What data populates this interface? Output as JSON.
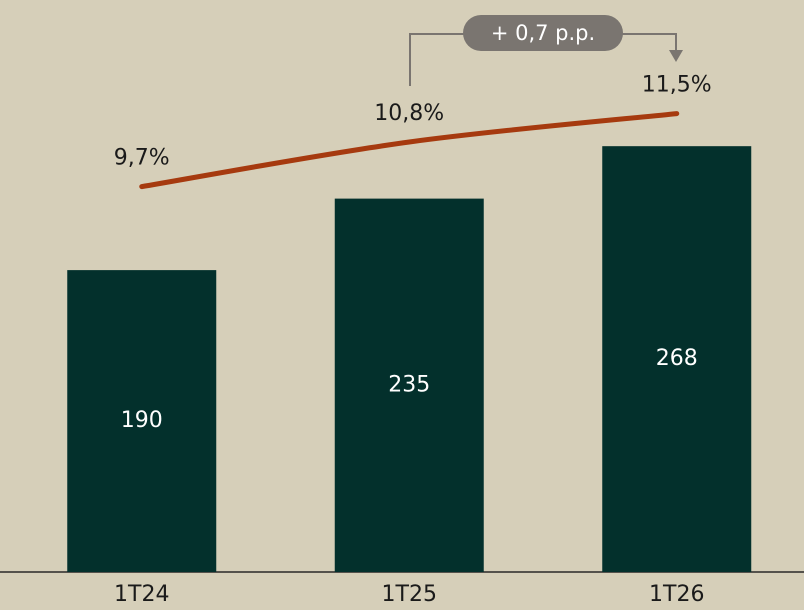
{
  "chart_data": {
    "type": "bar",
    "categories": [
      "1T24",
      "1T25",
      "1T26"
    ],
    "series": [
      {
        "type": "bar",
        "color": "#03302c",
        "values": [
          190,
          235,
          268
        ]
      },
      {
        "type": "line",
        "axis": "y2",
        "color": "#a63a0f",
        "values": [
          9.7,
          10.8,
          11.5
        ],
        "value_labels": [
          "9,7%",
          "10,8%",
          "11,5%"
        ]
      }
    ],
    "ylim": [
      0,
      360
    ],
    "y2lim": [
      0.2,
      14.3
    ],
    "annotation": "+ 0,7 p.p."
  }
}
